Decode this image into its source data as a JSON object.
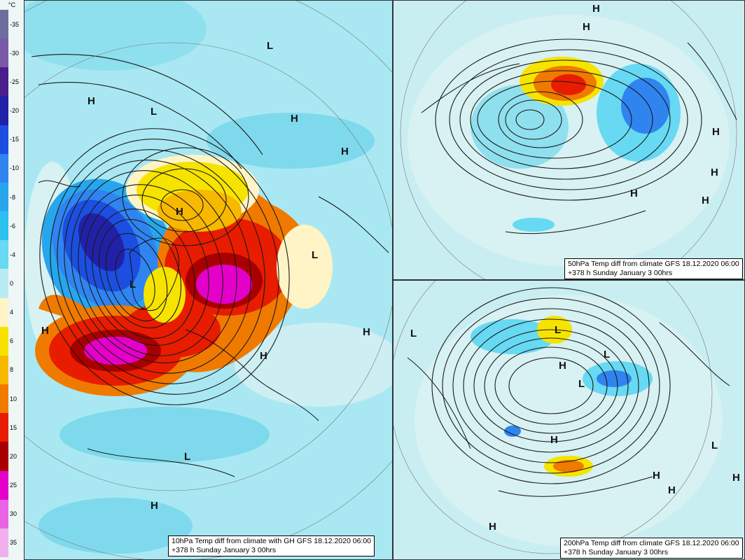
{
  "legend": {
    "unit": "°C",
    "levels": [
      {
        "label": "-35",
        "color": "#6e6e9e"
      },
      {
        "label": "-30",
        "color": "#7a5aa8"
      },
      {
        "label": "-25",
        "color": "#4b1e8e"
      },
      {
        "label": "-20",
        "color": "#2121a8"
      },
      {
        "label": "-15",
        "color": "#1c4ee0"
      },
      {
        "label": "-10",
        "color": "#2f84f0"
      },
      {
        "label": "-8",
        "color": "#27a6ee"
      },
      {
        "label": "-6",
        "color": "#2cc0ee"
      },
      {
        "label": "-4",
        "color": "#67d9f2"
      },
      {
        "label": "0",
        "color": "#b9ecf2"
      },
      {
        "label": "4",
        "color": "#fff4c6"
      },
      {
        "label": "6",
        "color": "#f6e300"
      },
      {
        "label": "8",
        "color": "#f7b800"
      },
      {
        "label": "10",
        "color": "#f07a00"
      },
      {
        "label": "15",
        "color": "#e81c00"
      },
      {
        "label": "20",
        "color": "#a80000"
      },
      {
        "label": "25",
        "color": "#e400c8"
      },
      {
        "label": "30",
        "color": "#e864e4"
      },
      {
        "label": "35",
        "color": "#f0b0ee"
      }
    ]
  },
  "panels": {
    "main": {
      "caption_line1": "10hPa Temp diff from climate with GH GFS 18.12.2020 06:00",
      "caption_line2": "+378 h Sunday January 3 00hrs",
      "pressure_labels": [
        "H",
        "L",
        "L",
        "H",
        "H",
        "L",
        "L",
        "H",
        "H",
        "H",
        "H",
        "L",
        "H"
      ]
    },
    "top_right": {
      "caption_line1": "50hPa Temp diff from climate GFS 18.12.2020 06:00",
      "caption_line2": "+378 h Sunday January 3 00hrs",
      "pressure_labels": [
        "H",
        "H",
        "H",
        "H",
        "H",
        "H"
      ]
    },
    "bottom_right": {
      "caption_line1": "200hPa Temp diff from climate GFS 18.12.2020 06:00",
      "caption_line2": "+378 h Sunday January 3 00hrs",
      "pressure_labels": [
        "L",
        "L",
        "H",
        "H",
        "L",
        "L",
        "L",
        "H",
        "H",
        "H",
        "H"
      ]
    }
  }
}
